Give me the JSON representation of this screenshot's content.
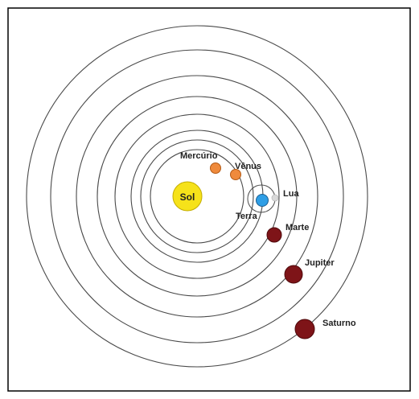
{
  "diagram": {
    "sun": {
      "label": "Sol",
      "color": "#f6e21a",
      "stroke": "#c4ad00"
    },
    "planets": {
      "mercury": {
        "label": "Mercúrio",
        "color": "#ef8a3c"
      },
      "venus": {
        "label": "Vênus",
        "color": "#ef8a3c"
      },
      "earth": {
        "label": "Terra",
        "color": "#2f9ee5"
      },
      "moon": {
        "label": "Lua",
        "color": "#d9d9d9"
      },
      "mars": {
        "label": "Marte",
        "color": "#7e1418"
      },
      "jupiter": {
        "label": "Jupiter",
        "color": "#7e1418"
      },
      "saturn": {
        "label": "Saturno",
        "color": "#7e1418"
      }
    },
    "orbit_color": "#4a4a4a",
    "border_color": "#000000"
  }
}
